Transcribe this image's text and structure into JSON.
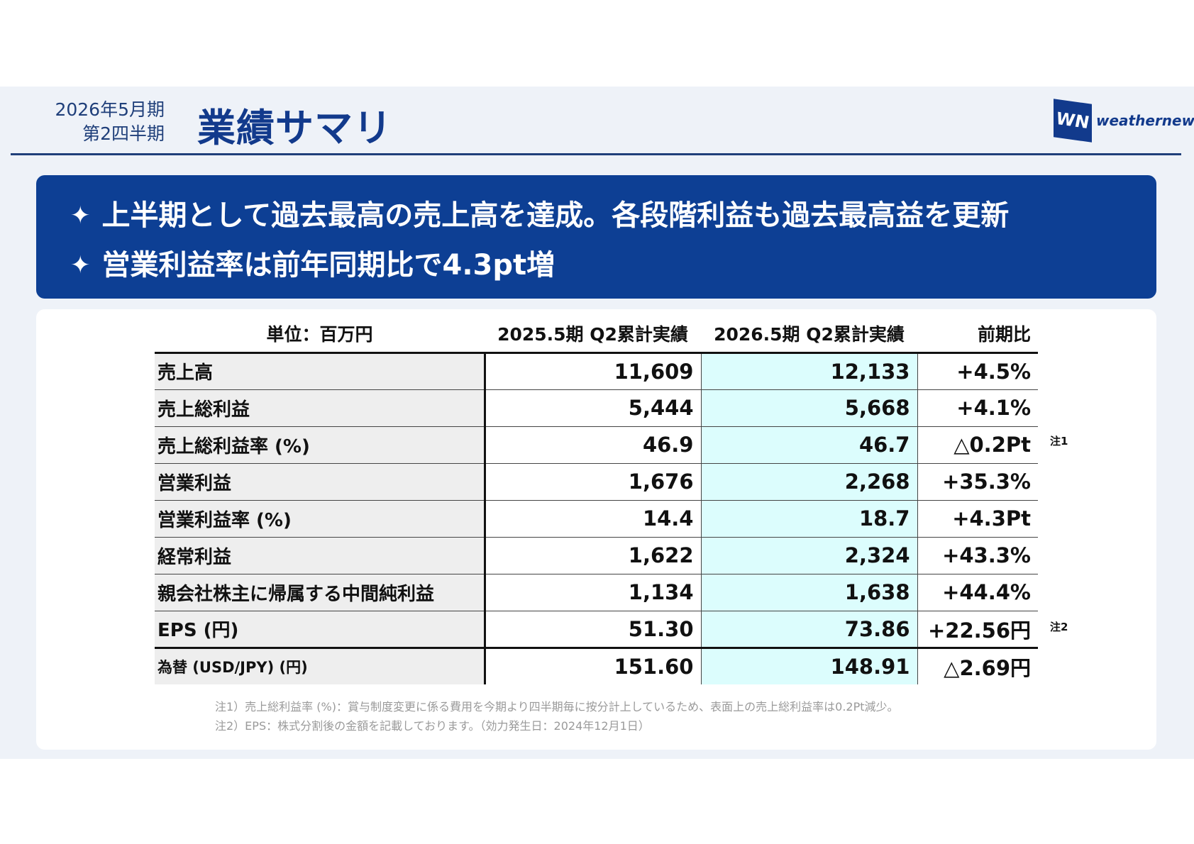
{
  "header": {
    "period_line1": "2026年5月期",
    "period_line2": "第2四半期",
    "title": "業績サマリ",
    "logo_mark": "WN",
    "logo_text": "weathernews"
  },
  "banner": {
    "bullet_icon": "four-pointed-star",
    "lines": [
      "上半期として過去最高の売上高を達成。各段階利益も過去最高益を更新",
      "営業利益率は前年同期比で4.3pt増"
    ]
  },
  "table": {
    "headers": [
      "単位：百万円",
      "2025.5期 Q2累計実績",
      "2026.5期 Q2累計実績",
      "前期比"
    ],
    "rows": [
      [
        "売上高",
        "11,609",
        "12,133",
        "+4.5%"
      ],
      [
        "売上総利益",
        "5,444",
        "5,668",
        "+4.1%"
      ],
      [
        "売上総利益率 (%)",
        "46.9",
        "46.7",
        "△0.2Pt"
      ],
      [
        "営業利益",
        "1,676",
        "2,268",
        "+35.3%"
      ],
      [
        "営業利益率 (%)",
        "14.4",
        "18.7",
        "+4.3Pt"
      ],
      [
        "経常利益",
        "1,622",
        "2,324",
        "+43.3%"
      ],
      [
        "親会社株主に帰属する中間純利益",
        "1,134",
        "1,638",
        "+44.4%"
      ],
      [
        "EPS (円)",
        "51.30",
        "73.86",
        "+22.56円"
      ],
      [
        "為替 (USD/JPY) (円)",
        "151.60",
        "148.91",
        "△2.69円"
      ]
    ],
    "highlight_color": "#dcfdfd"
  },
  "side_notes": [
    "注1",
    "注2"
  ],
  "footnotes": [
    "注1）売上総利益率 (%)：賞与制度変更に係る費用を今期より四半期毎に按分計上しているため、表面上の売上総利益率は0.2Pt減少。",
    "注2）EPS：株式分割後の金額を記載しております。（効力発生日：2024年12月1日）"
  ],
  "colors": {
    "brand": "#0d3f94",
    "background": "#eef2f8"
  }
}
